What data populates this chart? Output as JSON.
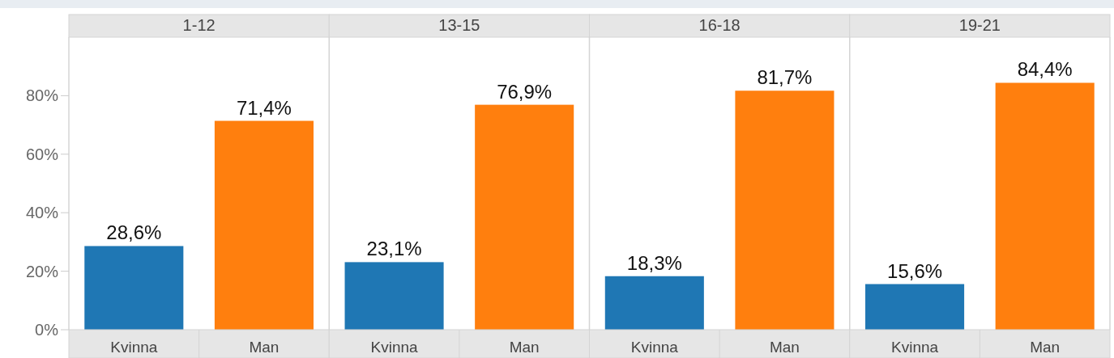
{
  "chart_data": [
    {
      "type": "bar",
      "title": "1-12",
      "categories": [
        "Kvinna",
        "Man"
      ],
      "values": [
        28.6,
        71.4
      ],
      "colors": [
        "#1f77b4",
        "#ff7f0e"
      ],
      "value_labels": [
        "28,6%",
        "71,4%"
      ],
      "ylim": [
        0,
        100
      ],
      "yticks": [
        {
          "value": 0,
          "label": "0%"
        },
        {
          "value": 20,
          "label": "20%"
        },
        {
          "value": 40,
          "label": "40%"
        },
        {
          "value": 60,
          "label": "60%"
        },
        {
          "value": 80,
          "label": "80%"
        }
      ],
      "grid": false
    },
    {
      "type": "bar",
      "title": "13-15",
      "categories": [
        "Kvinna",
        "Man"
      ],
      "values": [
        23.1,
        76.9
      ],
      "colors": [
        "#1f77b4",
        "#ff7f0e"
      ],
      "value_labels": [
        "23,1%",
        "76,9%"
      ],
      "ylim": [
        0,
        100
      ],
      "tick_labels": "x",
      "grid": false
    },
    {
      "type": "bar",
      "title": "16-18",
      "categories": [
        "Kvinna",
        "Man"
      ],
      "values": [
        18.3,
        81.7
      ],
      "colors": [
        "#1f77b4",
        "#ff7f0e"
      ],
      "value_labels": [
        "18,3%",
        "81,7%"
      ],
      "ylim": [
        0,
        100
      ],
      "tick_labels": "x",
      "grid": false
    },
    {
      "type": "bar",
      "title": "19-21",
      "categories": [
        "Kvinna",
        "Man"
      ],
      "values": [
        15.6,
        84.4
      ],
      "colors": [
        "#1f77b4",
        "#ff7f0e"
      ],
      "value_labels": [
        "15,6%",
        "84,4%"
      ],
      "ylim": [
        0,
        100
      ],
      "tick_labels": "x",
      "grid": false
    }
  ]
}
